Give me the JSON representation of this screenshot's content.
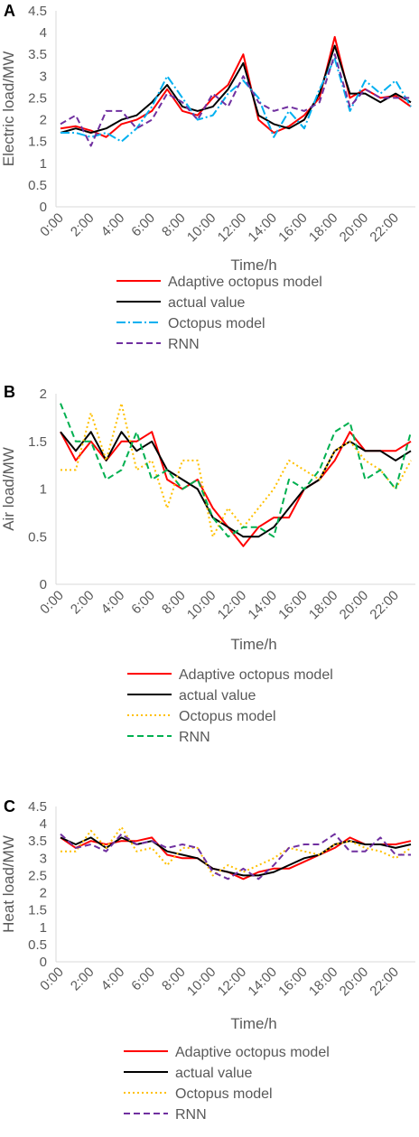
{
  "chart_data": [
    {
      "panel": "A",
      "type": "line",
      "xlabel": "Time/h",
      "ylabel": "Electric load/MW",
      "ylim": [
        0,
        4.5
      ],
      "yticks": [
        "0",
        "0.5",
        "1",
        "1.5",
        "2",
        "2.5",
        "3",
        "3.5",
        "4",
        "4.5"
      ],
      "x": [
        "0:00",
        "1:00",
        "2:00",
        "3:00",
        "4:00",
        "5:00",
        "6:00",
        "7:00",
        "8:00",
        "9:00",
        "10:00",
        "11:00",
        "12:00",
        "13:00",
        "14:00",
        "15:00",
        "16:00",
        "17:00",
        "18:00",
        "19:00",
        "20:00",
        "21:00",
        "22:00",
        "23:00"
      ],
      "xtick_labels": [
        "0:00",
        "2:00",
        "4:00",
        "6:00",
        "8:00",
        "10:00",
        "12:00",
        "14:00",
        "16:00",
        "18:00",
        "20:00",
        "22:00"
      ],
      "grid": false,
      "legend_position": "bottom",
      "series": [
        {
          "name": "Adaptive octopus model",
          "color": "#ff0000",
          "dash": "solid",
          "values": [
            1.8,
            1.85,
            1.75,
            1.6,
            1.9,
            2.0,
            2.2,
            2.7,
            2.2,
            2.1,
            2.5,
            2.8,
            3.5,
            2.0,
            1.7,
            1.85,
            2.1,
            2.5,
            3.9,
            2.5,
            2.7,
            2.5,
            2.55,
            2.3
          ]
        },
        {
          "name": "actual value",
          "color": "#000000",
          "dash": "solid",
          "values": [
            1.7,
            1.8,
            1.7,
            1.8,
            2.0,
            2.1,
            2.4,
            2.8,
            2.3,
            2.2,
            2.3,
            2.7,
            3.3,
            2.1,
            1.9,
            1.8,
            2.0,
            2.6,
            3.7,
            2.6,
            2.6,
            2.4,
            2.6,
            2.4
          ]
        },
        {
          "name": "Octopus model",
          "color": "#00b0f0",
          "dash": "dashdot",
          "values": [
            1.7,
            1.7,
            1.6,
            1.7,
            1.5,
            1.8,
            2.3,
            3.0,
            2.5,
            2.0,
            2.1,
            2.6,
            2.9,
            2.5,
            1.6,
            2.2,
            1.8,
            2.7,
            3.4,
            2.2,
            2.9,
            2.6,
            2.9,
            2.3
          ]
        },
        {
          "name": "RNN",
          "color": "#7030a0",
          "dash": "dashed",
          "values": [
            1.9,
            2.1,
            1.4,
            2.2,
            2.2,
            1.8,
            2.0,
            2.6,
            2.4,
            2.0,
            2.6,
            2.3,
            3.0,
            2.4,
            2.2,
            2.3,
            2.2,
            2.4,
            3.5,
            2.3,
            2.7,
            2.5,
            2.5,
            2.5
          ]
        }
      ]
    },
    {
      "panel": "B",
      "type": "line",
      "xlabel": "Time/h",
      "ylabel": "Air load/MW",
      "ylim": [
        0,
        2
      ],
      "yticks": [
        "0",
        "0.5",
        "1",
        "1.5",
        "2"
      ],
      "x": [
        "0:00",
        "1:00",
        "2:00",
        "3:00",
        "4:00",
        "5:00",
        "6:00",
        "7:00",
        "8:00",
        "9:00",
        "10:00",
        "11:00",
        "12:00",
        "13:00",
        "14:00",
        "15:00",
        "16:00",
        "17:00",
        "18:00",
        "19:00",
        "20:00",
        "21:00",
        "22:00",
        "23:00"
      ],
      "xtick_labels": [
        "0:00",
        "2:00",
        "4:00",
        "6:00",
        "8:00",
        "10:00",
        "12:00",
        "14:00",
        "16:00",
        "18:00",
        "20:00",
        "22:00"
      ],
      "grid": false,
      "legend_position": "bottom",
      "series": [
        {
          "name": "Adaptive octopus model",
          "color": "#ff0000",
          "dash": "solid",
          "values": [
            1.6,
            1.3,
            1.5,
            1.3,
            1.5,
            1.5,
            1.6,
            1.1,
            1.0,
            1.1,
            0.8,
            0.6,
            0.4,
            0.6,
            0.7,
            0.7,
            1.0,
            1.1,
            1.3,
            1.6,
            1.4,
            1.4,
            1.4,
            1.5
          ]
        },
        {
          "name": "actual value",
          "color": "#000000",
          "dash": "solid",
          "values": [
            1.6,
            1.4,
            1.6,
            1.3,
            1.6,
            1.4,
            1.5,
            1.2,
            1.1,
            1.0,
            0.7,
            0.6,
            0.5,
            0.5,
            0.6,
            0.8,
            1.0,
            1.1,
            1.4,
            1.5,
            1.4,
            1.4,
            1.3,
            1.4
          ]
        },
        {
          "name": "Octopus model",
          "color": "#ffc000",
          "dash": "dotted",
          "values": [
            1.2,
            1.2,
            1.8,
            1.3,
            1.9,
            1.2,
            1.3,
            0.8,
            1.3,
            1.3,
            0.5,
            0.8,
            0.6,
            0.8,
            1.0,
            1.3,
            1.2,
            1.1,
            1.4,
            1.5,
            1.3,
            1.2,
            1.0,
            1.3
          ]
        },
        {
          "name": "RNN",
          "color": "#00b050",
          "dash": "dashed",
          "values": [
            1.9,
            1.5,
            1.5,
            1.1,
            1.2,
            1.6,
            1.1,
            1.2,
            1.0,
            1.1,
            0.7,
            0.5,
            0.6,
            0.6,
            0.5,
            1.1,
            1.0,
            1.2,
            1.6,
            1.7,
            1.1,
            1.2,
            1.0,
            1.6
          ]
        }
      ]
    },
    {
      "panel": "C",
      "type": "line",
      "xlabel": "Time/h",
      "ylabel": "Heat load/MW",
      "ylim": [
        0,
        4.5
      ],
      "yticks": [
        "0",
        "0.5",
        "1",
        "1.5",
        "2",
        "2.5",
        "3",
        "3.5",
        "4",
        "4.5"
      ],
      "x": [
        "0:00",
        "1:00",
        "2:00",
        "3:00",
        "4:00",
        "5:00",
        "6:00",
        "7:00",
        "8:00",
        "9:00",
        "10:00",
        "11:00",
        "12:00",
        "13:00",
        "14:00",
        "15:00",
        "16:00",
        "17:00",
        "18:00",
        "19:00",
        "20:00",
        "21:00",
        "22:00",
        "23:00"
      ],
      "xtick_labels": [
        "0:00",
        "2:00",
        "4:00",
        "6:00",
        "8:00",
        "10:00",
        "12:00",
        "14:00",
        "16:00",
        "18:00",
        "20:00",
        "22:00"
      ],
      "grid": false,
      "legend_position": "bottom",
      "series": [
        {
          "name": "Adaptive octopus model",
          "color": "#ff0000",
          "dash": "solid",
          "values": [
            3.6,
            3.3,
            3.5,
            3.4,
            3.5,
            3.5,
            3.6,
            3.1,
            3.0,
            3.0,
            2.7,
            2.6,
            2.4,
            2.6,
            2.7,
            2.7,
            2.9,
            3.1,
            3.3,
            3.6,
            3.4,
            3.4,
            3.4,
            3.5
          ]
        },
        {
          "name": "actual value",
          "color": "#000000",
          "dash": "solid",
          "values": [
            3.6,
            3.4,
            3.6,
            3.3,
            3.6,
            3.4,
            3.5,
            3.2,
            3.1,
            3.0,
            2.7,
            2.6,
            2.5,
            2.5,
            2.6,
            2.8,
            3.0,
            3.1,
            3.4,
            3.5,
            3.4,
            3.4,
            3.3,
            3.4
          ]
        },
        {
          "name": "Octopus model",
          "color": "#ffc000",
          "dash": "dotted",
          "values": [
            3.2,
            3.2,
            3.8,
            3.3,
            3.9,
            3.2,
            3.3,
            2.8,
            3.3,
            3.3,
            2.5,
            2.8,
            2.6,
            2.8,
            3.0,
            3.3,
            3.2,
            3.1,
            3.4,
            3.5,
            3.3,
            3.2,
            3.0,
            3.3
          ]
        },
        {
          "name": "RNN",
          "color": "#7030a0",
          "dash": "dashed",
          "values": [
            3.7,
            3.3,
            3.4,
            3.2,
            3.7,
            3.4,
            3.5,
            3.3,
            3.4,
            3.3,
            2.6,
            2.4,
            2.7,
            2.4,
            2.8,
            3.3,
            3.4,
            3.4,
            3.7,
            3.2,
            3.2,
            3.6,
            3.1,
            3.1
          ]
        }
      ]
    }
  ]
}
